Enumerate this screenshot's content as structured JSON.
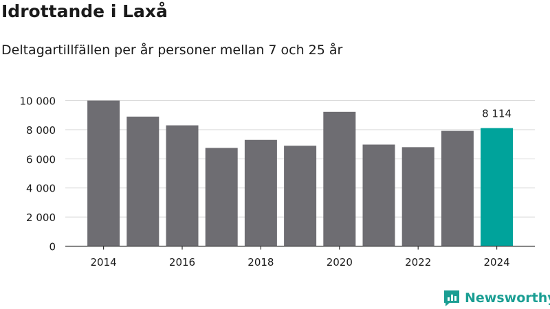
{
  "header": {
    "title": "Idrottande i Laxå",
    "subtitle": "Deltagartillfällen per år personer mellan 7 och 25 år"
  },
  "brand": {
    "name": "Newsworthy"
  },
  "colors": {
    "bar": "#6e6d72",
    "highlight": "#00a39b",
    "grid": "#d9d9d9",
    "brand": "#1a9e93"
  },
  "chart_data": {
    "type": "bar",
    "categories": [
      "2014",
      "2015",
      "2016",
      "2017",
      "2018",
      "2019",
      "2020",
      "2021",
      "2022",
      "2023",
      "2024"
    ],
    "values": [
      10000,
      8900,
      8300,
      6750,
      7300,
      6900,
      9230,
      6980,
      6800,
      7920,
      8114
    ],
    "highlight_index": 10,
    "highlight_label": "8 114",
    "ylim": [
      0,
      10000
    ],
    "yticks": [
      0,
      2000,
      4000,
      6000,
      8000,
      10000
    ],
    "ytick_labels": [
      "0",
      "2 000",
      "4 000",
      "6 000",
      "8 000",
      "10 000"
    ],
    "xtick_labels": [
      "2014",
      "2016",
      "2018",
      "2020",
      "2022",
      "2024"
    ],
    "grid": true
  }
}
